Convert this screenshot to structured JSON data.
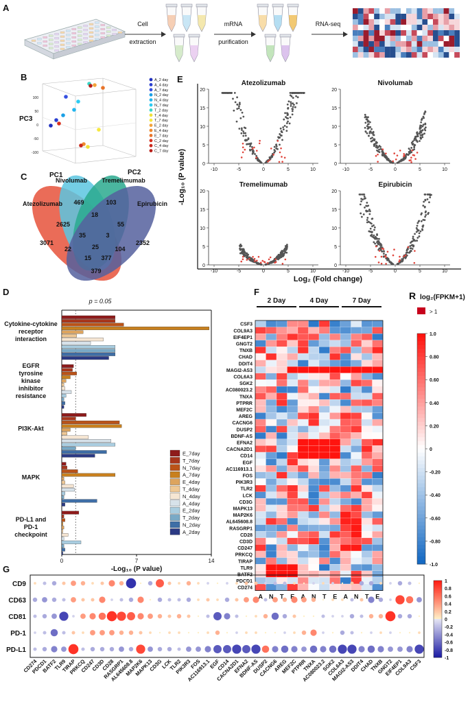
{
  "panels": {
    "A": "A",
    "B": "B",
    "C": "C",
    "D": "D",
    "E": "E",
    "F": "F",
    "G": "G"
  },
  "panelA": {
    "step1": "Cell",
    "step1b": "extraction",
    "step2": "mRNA",
    "step2b": "purification",
    "step3": "RNA-seq"
  },
  "panelB": {
    "legend": [
      "A_2 day",
      "A_4 day",
      "A_7 day",
      "N_2 day",
      "N_4 day",
      "N_7 day",
      "T_2 day",
      "T_4 day",
      "T_7 day",
      "E_2 day",
      "E_4 day",
      "E_7 day",
      "C_2 day",
      "C_4 day",
      "C_7 day"
    ],
    "legend_colors": [
      "#1f2fbf",
      "#2a3fd0",
      "#3550e0",
      "#1aa0e6",
      "#22b6ee",
      "#2ccbf2",
      "#39d6c8",
      "#f0e03a",
      "#f6e840",
      "#f2a23a",
      "#f08a2e",
      "#e8742a",
      "#d9311e",
      "#c9281c",
      "#b81e18"
    ],
    "xlabel": "PC1",
    "ylabel": "PC2",
    "zlabel": "PC3",
    "zticks": [
      "100",
      "50",
      "0",
      "-50",
      "-100"
    ]
  },
  "panelC": {
    "sets": [
      "Atezolizumab",
      "Nivolumab",
      "Tremelimumab",
      "Epirubicin"
    ],
    "set_colors": [
      "#e8604a",
      "#5cc5e0",
      "#2aa98e",
      "#55609e"
    ],
    "values": [
      "469",
      "103",
      "2625",
      "18",
      "55",
      "3071",
      "35",
      "3",
      "2352",
      "22",
      "25",
      "104",
      "15",
      "377",
      "379"
    ]
  },
  "panelD": {
    "threshold_label": "p = 0.05",
    "threshold": 1.3,
    "xmax": 14,
    "xticks": [
      "0",
      "7",
      "14"
    ],
    "xlabel": "-Log₁₀ (P value)",
    "pathways": [
      "Cytokine-cytokine receptor interaction",
      "EGFR tyrosine kinase inhibitor resistance",
      "PI3K-Akt",
      "MAPK",
      "PD-L1 and PD-1 checkpoint"
    ],
    "pathway_lines": [
      [
        "Cytokine-cytokine",
        "receptor",
        "interaction"
      ],
      [
        "EGFR",
        "tyrosine",
        "kinase",
        "inhibitor",
        "resistance"
      ],
      [
        "PI3K-Akt"
      ],
      [
        "MAPK"
      ],
      [
        "PD-L1 and",
        "PD-1",
        "checkpoint"
      ]
    ],
    "series": [
      "E_7day",
      "T_7day",
      "N_7day",
      "A_7day",
      "E_4day",
      "T_4day",
      "N_4day",
      "A_4day",
      "E_2day",
      "T_2day",
      "N_2day",
      "A_2day"
    ],
    "series_colors": [
      "#8e1b1b",
      "#a8361c",
      "#bb5318",
      "#c8801e",
      "#dda45e",
      "#efc894",
      "#f6e6d3",
      "#d7e2ea",
      "#a9cde0",
      "#79a9c6",
      "#3f6ea6",
      "#2b3a84"
    ],
    "values": [
      [
        5.0,
        5.0,
        5.8,
        13.8,
        2.0,
        1.4,
        3.9,
        2.7,
        5.0,
        5.0,
        5.0,
        4.4
      ],
      [
        1.1,
        1.0,
        1.4,
        0.8,
        0.4,
        0.2,
        0.3,
        0.9,
        0.4,
        0.2,
        0.3,
        0.2
      ],
      [
        2.3,
        1.3,
        5.4,
        5.6,
        0.8,
        0.5,
        2.5,
        4.6,
        5.0,
        1.3,
        4.2,
        3.1
      ],
      [
        0.4,
        0.5,
        1.5,
        5.0,
        0.2,
        0.3,
        1.1,
        1.2,
        0.3,
        0.2,
        3.3,
        0.3
      ],
      [
        1.6,
        0.2,
        0.3,
        0.1,
        0.2,
        0.1,
        0.6,
        0.2,
        1.8,
        0.2,
        0.3,
        0.1
      ]
    ]
  },
  "panelE": {
    "ylabel": "-Log₁₀ (P value)",
    "xlabel": "Log₂ (Fold change)",
    "titles": [
      "Atezolizumab",
      "Nivolumab",
      "Tremelimumab",
      "Epirubicin"
    ],
    "xticks": [
      "-10",
      "-5",
      "0",
      "5",
      "10"
    ],
    "yticks": [
      "20",
      "15",
      "10",
      "5",
      "0"
    ]
  },
  "panelF": {
    "groups": [
      "2 Day",
      "4 Day",
      "7 Day"
    ],
    "columns": [
      "A",
      "N",
      "T",
      "E",
      "A",
      "N",
      "T",
      "E",
      "A",
      "N",
      "T",
      "E"
    ],
    "genes": [
      "CSF3",
      "COL9A3",
      "EIF4EP1",
      "GNGT2",
      "TNXB",
      "CHAD",
      "DDIT4",
      "MAGI2-AS3",
      "COL6A3",
      "SGK2",
      "AC080023.2",
      "TNXA",
      "PTPRR",
      "MEF2C",
      "AREG",
      "CACNG6",
      "DUSP2",
      "BDNF-AS",
      "EFNA2",
      "CACNA2D1",
      "CD14",
      "EGF",
      "AC116913.1",
      "FOS",
      "PIK3R3",
      "TLR2",
      "LCK",
      "CD3G",
      "MAPK13",
      "MAP2K6",
      "AL645608.8",
      "RASGRP1",
      "CD28",
      "CD3D",
      "CD247",
      "PRKCQ",
      "TIRAP",
      "TLR9",
      "BATF2",
      "PDCD1",
      "CD274"
    ],
    "legend_title": "log₂(FPKM+1)",
    "legend_r": "R",
    "legend_gt": "> 1",
    "legend_ticks": [
      "1.0",
      "0.80",
      "0.60",
      "0.40",
      "0.20",
      "0",
      "-0.20",
      "-0.40",
      "-0.60",
      "-0.80",
      "-1.0"
    ]
  },
  "panelG": {
    "rows": [
      "CD9",
      "CD63",
      "CD81",
      "PD-1",
      "PD-L1"
    ],
    "genes": [
      "CD274",
      "PDCD1",
      "BATF2",
      "TLR9",
      "TIRAP",
      "PRKCQ",
      "CD247",
      "CD3D",
      "CD28",
      "RASGRP1",
      "AL645608.8",
      "MAP2K6",
      "MAPK13",
      "CD3G",
      "LCK",
      "TLR2",
      "PIK3R3",
      "FOS",
      "AC116913.1",
      "EGF",
      "CD14",
      "CACNA2D1",
      "EFNA2",
      "BDNF-AS",
      "DUSP2",
      "CACNG6",
      "AREG",
      "MEF2C",
      "PTPRR",
      "TNXA",
      "AC080023.2",
      "SGK2",
      "COL6A3",
      "MAGI2-AS3",
      "DDIT4",
      "CHAD",
      "TNXB",
      "GNGT2",
      "EIF4EP1",
      "COL9A3",
      "CSF3"
    ],
    "legend_ticks": [
      "1",
      "0.8",
      "0.6",
      "0.4",
      "0.2",
      "0",
      "-0.2",
      "-0.4",
      "-0.6",
      "-0.8",
      "-1"
    ],
    "values": [
      [
        0.1,
        -0.2,
        -0.3,
        0.2,
        0.4,
        0.3,
        0.1,
        0.2,
        0.5,
        0.3,
        -0.9,
        0.0,
        -0.3,
        0.7,
        0.2,
        0.1,
        0.3,
        0.1,
        -0.1,
        0.0,
        -0.1,
        0.1,
        0.2,
        0.2,
        -0.1,
        -0.2,
        -0.2,
        0.1,
        0.0,
        -0.1,
        0.1,
        -0.1,
        0.0,
        0.2,
        -0.3,
        -0.3,
        0.1,
        -0.1,
        -0.3,
        -0.2,
        0.0
      ],
      [
        -0.3,
        -0.4,
        -0.3,
        -0.2,
        0.4,
        0.2,
        0.2,
        0.5,
        -0.1,
        -0.2,
        -0.3,
        0.5,
        0.0,
        -0.3,
        -0.2,
        -0.2,
        -0.3,
        0.1,
        0.2,
        0.1,
        -0.3,
        0.2,
        0.4,
        0.5,
        -0.2,
        0.4,
        0.3,
        0.5,
        0.4,
        0.3,
        0.0,
        0.1,
        0.1,
        -0.2,
        0.2,
        -0.5,
        -0.3,
        -0.1,
        0.8,
        0.6,
        -0.4
      ],
      [
        -0.2,
        -0.3,
        -0.4,
        -0.8,
        -0.1,
        0.4,
        0.5,
        0.6,
        0.9,
        0.8,
        0.7,
        0.5,
        0.4,
        0.3,
        0.2,
        0.3,
        0.2,
        0.0,
        -0.2,
        -0.7,
        -0.5,
        -0.2,
        0.0,
        0.1,
        0.3,
        -0.6,
        -0.3,
        0.2,
        0.0,
        0.0,
        -0.2,
        -0.1,
        -0.1,
        -0.3,
        -0.2,
        0.3,
        0.3,
        0.9,
        -0.3,
        -0.3,
        0.0
      ],
      [
        -0.1,
        -0.2,
        -0.6,
        -0.2,
        0.2,
        0.1,
        0.4,
        0.4,
        0.4,
        0.3,
        0.3,
        0.2,
        0.1,
        0.0,
        0.1,
        0.1,
        0.0,
        0.0,
        0.1,
        0.3,
        0.0,
        -0.1,
        0.1,
        0.1,
        0.0,
        0.0,
        -0.1,
        0.1,
        0.3,
        0.5,
        -0.1,
        0.0,
        -0.3,
        -0.2,
        0.0,
        -0.1,
        0.1,
        -0.1,
        0.0,
        0.0,
        0.1
      ],
      [
        -0.2,
        -0.3,
        -0.5,
        -0.4,
        0.9,
        -0.2,
        -0.3,
        -0.3,
        -0.3,
        -0.4,
        -0.3,
        0.8,
        -0.4,
        -0.3,
        -0.3,
        -0.2,
        -0.4,
        -0.4,
        -0.5,
        -0.7,
        -0.7,
        -0.8,
        -0.7,
        -0.8,
        0.6,
        -0.5,
        -0.6,
        -0.5,
        -0.4,
        -0.6,
        -0.5,
        -0.6,
        -0.8,
        -0.8,
        -0.5,
        -0.6,
        -0.5,
        -0.4,
        -0.4,
        -0.5,
        -0.8
      ]
    ]
  }
}
